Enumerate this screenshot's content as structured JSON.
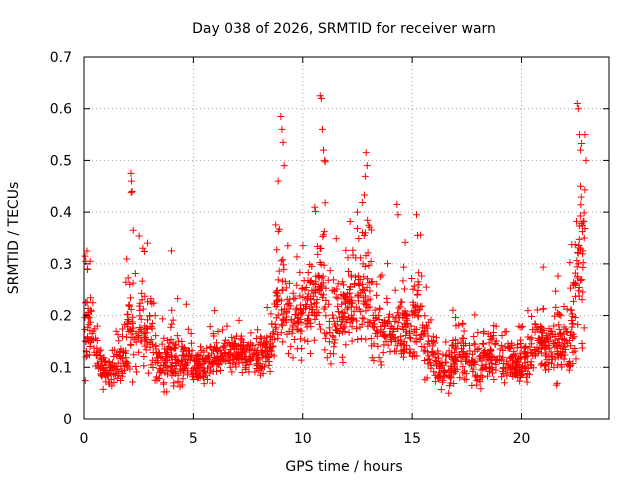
{
  "chart_data": {
    "type": "scatter",
    "title": "Day 038 of 2026, SRMTID for receiver warn",
    "xlabel": "GPS time / hours",
    "ylabel": "SRMTID / TECUs",
    "xlim": [
      0,
      24
    ],
    "ylim": [
      0,
      0.7
    ],
    "xticks": [
      0,
      5,
      10,
      15,
      20
    ],
    "yticks": [
      0,
      0.1,
      0.2,
      0.3,
      0.4,
      0.5,
      0.6,
      0.7
    ],
    "grid": true,
    "marker": "+",
    "color": "#ff0000",
    "series": [
      {
        "name": "SRMTID",
        "profile": [
          [
            0.0,
            0.17,
            0.12
          ],
          [
            0.3,
            0.18,
            0.1
          ],
          [
            0.7,
            0.1,
            0.05
          ],
          [
            1.2,
            0.09,
            0.05
          ],
          [
            1.7,
            0.12,
            0.07
          ],
          [
            2.1,
            0.18,
            0.15
          ],
          [
            2.6,
            0.17,
            0.1
          ],
          [
            3.0,
            0.17,
            0.1
          ],
          [
            3.5,
            0.1,
            0.07
          ],
          [
            4.0,
            0.12,
            0.08
          ],
          [
            4.5,
            0.1,
            0.07
          ],
          [
            5.0,
            0.1,
            0.05
          ],
          [
            5.5,
            0.1,
            0.05
          ],
          [
            6.0,
            0.12,
            0.05
          ],
          [
            6.5,
            0.12,
            0.05
          ],
          [
            7.0,
            0.13,
            0.05
          ],
          [
            7.5,
            0.12,
            0.05
          ],
          [
            8.0,
            0.13,
            0.05
          ],
          [
            8.5,
            0.13,
            0.05
          ],
          [
            8.9,
            0.25,
            0.2
          ],
          [
            9.2,
            0.2,
            0.12
          ],
          [
            9.6,
            0.17,
            0.1
          ],
          [
            10.0,
            0.22,
            0.12
          ],
          [
            10.5,
            0.22,
            0.12
          ],
          [
            10.9,
            0.28,
            0.2
          ],
          [
            11.3,
            0.18,
            0.12
          ],
          [
            11.8,
            0.2,
            0.1
          ],
          [
            12.3,
            0.22,
            0.12
          ],
          [
            12.8,
            0.25,
            0.15
          ],
          [
            13.2,
            0.2,
            0.12
          ],
          [
            13.7,
            0.15,
            0.08
          ],
          [
            14.3,
            0.17,
            0.1
          ],
          [
            14.8,
            0.17,
            0.1
          ],
          [
            15.3,
            0.2,
            0.12
          ],
          [
            15.8,
            0.12,
            0.08
          ],
          [
            16.3,
            0.09,
            0.05
          ],
          [
            16.8,
            0.1,
            0.07
          ],
          [
            17.3,
            0.12,
            0.08
          ],
          [
            17.8,
            0.1,
            0.07
          ],
          [
            18.3,
            0.12,
            0.07
          ],
          [
            18.8,
            0.12,
            0.07
          ],
          [
            19.3,
            0.11,
            0.06
          ],
          [
            19.8,
            0.1,
            0.05
          ],
          [
            20.3,
            0.12,
            0.07
          ],
          [
            20.8,
            0.15,
            0.08
          ],
          [
            21.3,
            0.14,
            0.08
          ],
          [
            21.8,
            0.15,
            0.1
          ],
          [
            22.2,
            0.13,
            0.08
          ],
          [
            22.6,
            0.3,
            0.25
          ],
          [
            22.9,
            0.35,
            0.25
          ]
        ],
        "spikes": [
          [
            0.05,
            0.315
          ],
          [
            0.08,
            0.305
          ],
          [
            2.15,
            0.475
          ],
          [
            2.17,
            0.46
          ],
          [
            2.2,
            0.44
          ],
          [
            2.25,
            0.365
          ],
          [
            2.9,
            0.34
          ],
          [
            4.0,
            0.325
          ],
          [
            9.0,
            0.585
          ],
          [
            9.05,
            0.56
          ],
          [
            9.1,
            0.535
          ],
          [
            9.15,
            0.49
          ],
          [
            10.8,
            0.625
          ],
          [
            10.85,
            0.62
          ],
          [
            10.9,
            0.56
          ],
          [
            10.95,
            0.52
          ],
          [
            11.0,
            0.5
          ],
          [
            12.9,
            0.515
          ],
          [
            12.95,
            0.49
          ],
          [
            12.5,
            0.4
          ],
          [
            14.3,
            0.415
          ],
          [
            14.35,
            0.395
          ],
          [
            15.2,
            0.395
          ],
          [
            15.25,
            0.355
          ],
          [
            22.55,
            0.61
          ],
          [
            22.6,
            0.6
          ],
          [
            22.65,
            0.55
          ],
          [
            22.9,
            0.55
          ],
          [
            22.95,
            0.5
          ],
          [
            22.7,
            0.45
          ]
        ],
        "count": 1900
      }
    ]
  }
}
